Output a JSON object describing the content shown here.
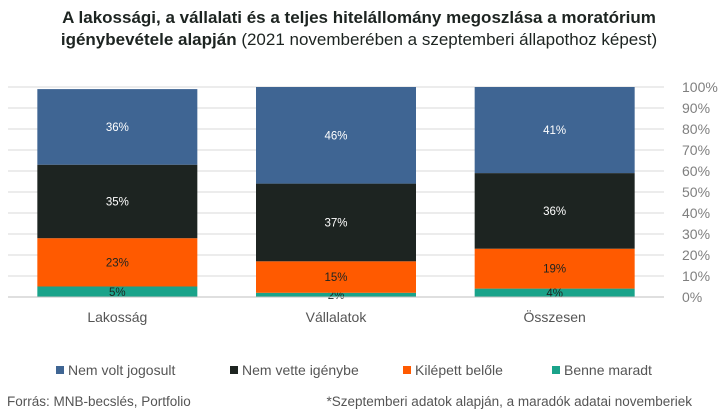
{
  "title_bold_line1": "A lakossági, a vállalati és a teljes hitelállomány megoszlása a moratórium",
  "title_bold_line2": "igénybevétele alapján",
  "title_normal_line2": " (2021 novemberében a szeptemberi állapothoz képest)",
  "source_text": "Forrás: MNB-becslés, Portfolio",
  "note_text": "*Szeptemberi adatok alapján, a maradók adatai novemberiek",
  "chart_data": {
    "type": "bar",
    "stacked": true,
    "percent": true,
    "categories": [
      "Lakosság",
      "Vállalatok",
      "Összesen"
    ],
    "series": [
      {
        "name": "Benne maradt",
        "values": [
          5,
          2,
          4
        ],
        "labels": [
          "5%",
          "2%",
          "4%"
        ],
        "color": "#1aa38a",
        "label_color": "#1d2421"
      },
      {
        "name": "Kilépett belőle",
        "values": [
          23,
          15,
          19
        ],
        "labels": [
          "23%",
          "15%",
          "19%"
        ],
        "color": "#ff5a00",
        "label_color": "#1d2421"
      },
      {
        "name": "Nem vette igénybe",
        "values": [
          35,
          37,
          36
        ],
        "labels": [
          "35%",
          "37%",
          "36%"
        ],
        "color": "#1d2421",
        "label_color": "#ffffff"
      },
      {
        "name": "Nem volt jogosult",
        "values": [
          36,
          46,
          41
        ],
        "labels": [
          "36%",
          "46%",
          "41%"
        ],
        "color": "#3f6593",
        "label_color": "#ffffff"
      }
    ],
    "legend_order": [
      "Nem volt jogosult",
      "Nem vette igénybe",
      "Kilépett belőle",
      "Benne maradt"
    ],
    "y_ticks": [
      "0%",
      "10%",
      "20%",
      "30%",
      "40%",
      "50%",
      "60%",
      "70%",
      "80%",
      "90%",
      "100%"
    ],
    "ylim": [
      0,
      100
    ],
    "y_axis_side": "right",
    "grid": true,
    "legend_position": "bottom",
    "title": "",
    "xlabel": "",
    "ylabel": ""
  }
}
